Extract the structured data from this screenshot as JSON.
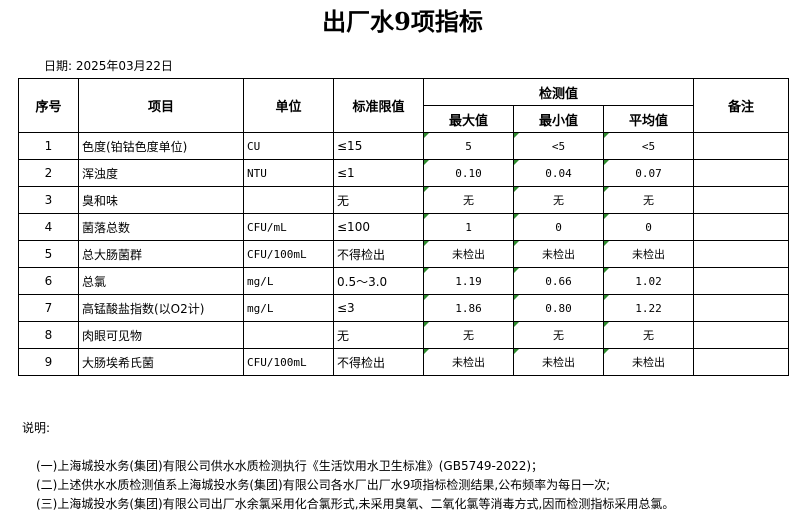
{
  "title": "出厂水9项指标",
  "date": "日期: 2025年03月22日",
  "headers": {
    "no": "序号",
    "item": "项目",
    "unit": "单位",
    "limit": "标准限值",
    "detect": "检测值",
    "max": "最大值",
    "min": "最小值",
    "avg": "平均值",
    "remark": "备注"
  },
  "rows": [
    {
      "no": "1",
      "item": "色度(铂钴色度单位)",
      "unit": "CU",
      "limit": "≤15",
      "max": "5",
      "min": "<5",
      "avg": "<5"
    },
    {
      "no": "2",
      "item": "浑浊度",
      "unit": "NTU",
      "limit": "≤1",
      "max": "0.10",
      "min": "0.04",
      "avg": "0.07"
    },
    {
      "no": "3",
      "item": "臭和味",
      "unit": "",
      "limit": "无",
      "max": "无",
      "min": "无",
      "avg": "无"
    },
    {
      "no": "4",
      "item": "菌落总数",
      "unit": "CFU/mL",
      "limit": "≤100",
      "max": "1",
      "min": "0",
      "avg": "0"
    },
    {
      "no": "5",
      "item": "总大肠菌群",
      "unit": "CFU/100mL",
      "limit": "不得检出",
      "max": "未检出",
      "min": "未检出",
      "avg": "未检出"
    },
    {
      "no": "6",
      "item": "总氯",
      "unit": "mg/L",
      "limit": "0.5～3.0",
      "max": "1.19",
      "min": "0.66",
      "avg": "1.02"
    },
    {
      "no": "7",
      "item": "高锰酸盐指数(以O2计)",
      "unit": "mg/L",
      "limit": "≤3",
      "max": "1.86",
      "min": "0.80",
      "avg": "1.22"
    },
    {
      "no": "8",
      "item": "肉眼可见物",
      "unit": "",
      "limit": "无",
      "max": "无",
      "min": "无",
      "avg": "无"
    },
    {
      "no": "9",
      "item": "大肠埃希氏菌",
      "unit": "CFU/100mL",
      "limit": "不得检出",
      "max": "未检出",
      "min": "未检出",
      "avg": "未检出"
    }
  ],
  "notes": {
    "heading": "说明:",
    "items": [
      "(一)上海城投水务(集团)有限公司供水水质检测执行《生活饮用水卫生标准》(GB5749-2022)；",
      "(二)上述供水水质检测值系上海城投水务(集团)有限公司各水厂出厂水9项指标检测结果,公布频率为每日一次;",
      "(三)上海城投水务(集团)有限公司出厂水余氯采用化合氯形式,未采用臭氧、二氧化氯等消毒方式,因而检测指标采用总氯。"
    ]
  }
}
